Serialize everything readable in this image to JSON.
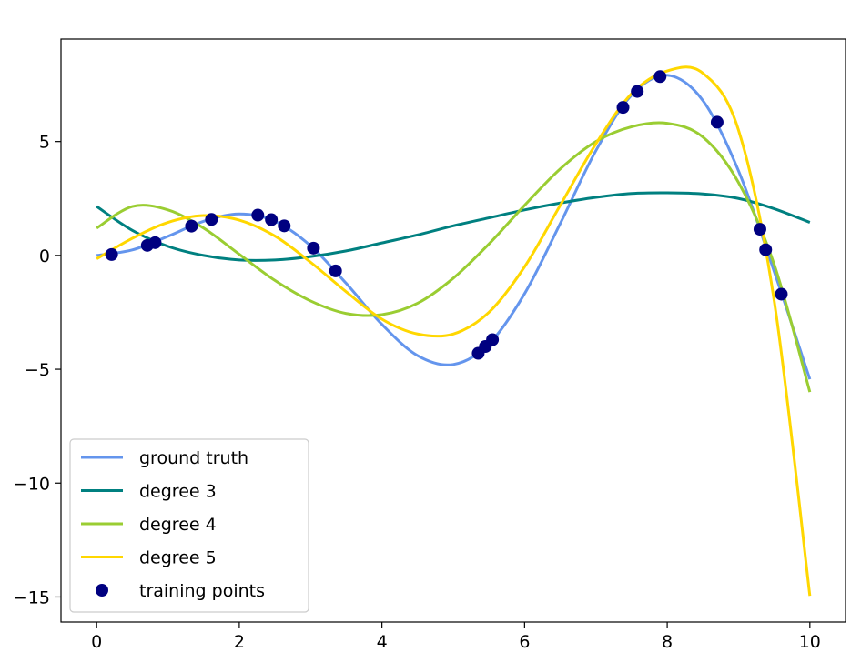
{
  "chart_data": {
    "type": "line",
    "title": "",
    "xlabel": "",
    "ylabel": "",
    "xlim": [
      -0.5,
      10.5
    ],
    "ylim": [
      -16.1,
      9.5
    ],
    "x_ticks": [
      0,
      2,
      4,
      6,
      8,
      10
    ],
    "y_ticks": [
      5,
      0,
      -5,
      -10,
      -15
    ],
    "x_tick_labels": [
      "0",
      "2",
      "4",
      "6",
      "8",
      "10"
    ],
    "y_tick_labels": [
      "5",
      "0",
      "−5",
      "−10",
      "−15"
    ],
    "grid": false,
    "legend_position": "lower-left",
    "series": [
      {
        "name": "ground truth",
        "kind": "line",
        "color": "#6495ed",
        "x": [
          0,
          0.5,
          1,
          1.5,
          2,
          2.5,
          3,
          3.5,
          4,
          4.5,
          5,
          5.5,
          6,
          6.5,
          7,
          7.5,
          8,
          8.5,
          9,
          9.5,
          10
        ],
        "y": [
          0.0,
          0.24,
          0.84,
          1.5,
          1.82,
          1.5,
          0.42,
          -1.23,
          -3.03,
          -4.4,
          -4.79,
          -3.89,
          -1.68,
          1.4,
          4.6,
          7.04,
          7.91,
          6.8,
          3.71,
          -0.71,
          -5.44
        ]
      },
      {
        "name": "degree 3",
        "kind": "line",
        "color": "#008080",
        "x": [
          0,
          0.5,
          1,
          1.5,
          2,
          2.5,
          3,
          3.5,
          4,
          4.5,
          5,
          5.5,
          6,
          6.5,
          7,
          7.5,
          8,
          8.5,
          9,
          9.5,
          10
        ],
        "y": [
          2.15,
          1.1,
          0.4,
          0.0,
          -0.2,
          -0.2,
          -0.05,
          0.2,
          0.55,
          0.9,
          1.3,
          1.65,
          2.0,
          2.3,
          2.55,
          2.72,
          2.75,
          2.7,
          2.5,
          2.05,
          1.45
        ]
      },
      {
        "name": "degree 4",
        "kind": "line",
        "color": "#9acd32",
        "x": [
          0,
          0.5,
          1,
          1.5,
          2,
          2.5,
          3,
          3.5,
          4,
          4.5,
          5,
          5.5,
          6,
          6.5,
          7,
          7.5,
          8,
          8.5,
          9,
          9.5,
          10
        ],
        "y": [
          1.2,
          2.15,
          2.0,
          1.2,
          0.05,
          -1.1,
          -2.0,
          -2.55,
          -2.6,
          -2.1,
          -1.0,
          0.5,
          2.2,
          3.8,
          5.0,
          5.65,
          5.8,
          5.2,
          3.2,
          -0.4,
          -6.0
        ]
      },
      {
        "name": "degree 5",
        "kind": "line",
        "color": "#ffd700",
        "x": [
          0,
          0.5,
          1,
          1.5,
          2,
          2.5,
          3,
          3.5,
          4,
          4.5,
          5,
          5.5,
          6,
          6.5,
          7,
          7.5,
          8,
          8.5,
          9,
          9.5,
          10
        ],
        "y": [
          -0.15,
          0.75,
          1.45,
          1.75,
          1.55,
          0.85,
          -0.3,
          -1.6,
          -2.8,
          -3.45,
          -3.45,
          -2.5,
          -0.5,
          2.2,
          4.9,
          7.1,
          8.1,
          8.0,
          5.5,
          -2.0,
          -14.95
        ]
      },
      {
        "name": "training points",
        "kind": "scatter",
        "color": "#000080",
        "x": [
          0.21,
          0.71,
          0.82,
          1.33,
          1.61,
          2.26,
          2.45,
          2.63,
          3.04,
          3.35,
          5.35,
          5.45,
          5.55,
          7.38,
          7.58,
          7.9,
          8.7,
          9.3,
          9.38,
          9.6
        ],
        "y": [
          0.04,
          0.44,
          0.56,
          1.29,
          1.58,
          1.77,
          1.57,
          1.3,
          0.32,
          -0.68,
          -4.3,
          -4.0,
          -3.7,
          6.5,
          7.2,
          7.85,
          5.85,
          1.15,
          0.25,
          -1.7
        ]
      }
    ]
  }
}
